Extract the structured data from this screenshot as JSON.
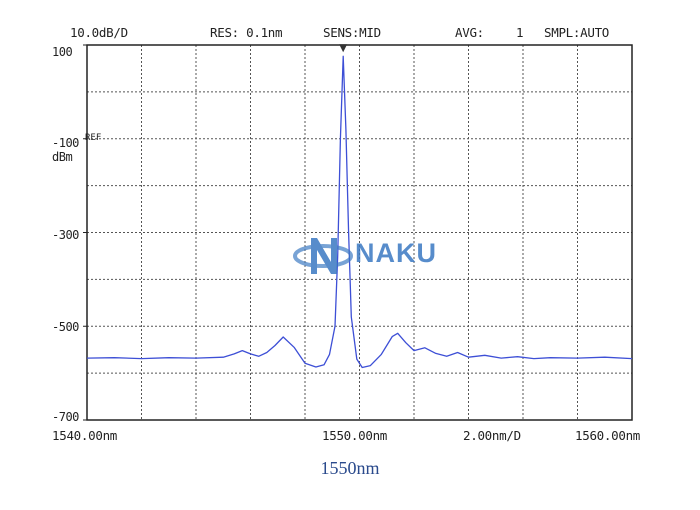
{
  "header": {
    "scale": "10.0dB/D",
    "resolution": "RES: 0.1nm",
    "sensitivity": "SENS:MID",
    "average_label": "AVG:",
    "average_value": "1",
    "sampling": "SMPL:AUTO"
  },
  "ref_marker": {
    "label": "REF",
    "unit": "dBm"
  },
  "watermark": {
    "text": "NAKU"
  },
  "caption": "1550nm",
  "colors": {
    "trace": "#3d4fd6",
    "grid": "#555555",
    "frame": "#222222",
    "watermark": "#3a78c2",
    "caption": "#2a4a8c"
  },
  "chart_data": {
    "type": "line",
    "x_axis": {
      "range": [
        1540,
        1560
      ],
      "unit": "nm",
      "divisions": 10,
      "tick_labels": [
        "1540.00nm",
        "1550.00nm",
        "2.00nm/D",
        "1560.00nm"
      ]
    },
    "y_axis": {
      "range": [
        -70,
        10
      ],
      "unit": "dBm",
      "divisions": 8,
      "tick_labels": [
        "100",
        "-100",
        "-300",
        "-500",
        "-700"
      ],
      "tick_values": [
        10,
        -10,
        -30,
        -50,
        -70
      ]
    },
    "grid": true,
    "peak_marker": {
      "x": 1549.4,
      "y": 7.6
    },
    "series": [
      {
        "x": [
          1540.0,
          1541.0,
          1542.0,
          1543.0,
          1544.0,
          1545.0,
          1545.4,
          1545.7,
          1546.0,
          1546.3,
          1546.6,
          1546.9,
          1547.2,
          1547.6,
          1548.0,
          1548.4,
          1548.7,
          1548.9,
          1549.1,
          1549.2,
          1549.3,
          1549.4,
          1549.5,
          1549.6,
          1549.7,
          1549.9,
          1550.1,
          1550.4,
          1550.8,
          1551.2,
          1551.4,
          1551.7,
          1552.0,
          1552.4,
          1552.8,
          1553.2,
          1553.6,
          1554.0,
          1554.6,
          1555.2,
          1555.8,
          1556.4,
          1557.0,
          1558.0,
          1559.0,
          1560.0
        ],
        "y": [
          -56.8,
          -56.7,
          -56.9,
          -56.7,
          -56.8,
          -56.6,
          -55.9,
          -55.2,
          -55.9,
          -56.4,
          -55.6,
          -54.1,
          -52.3,
          -54.5,
          -57.9,
          -58.7,
          -58.2,
          -56.0,
          -50.0,
          -35.0,
          -10.0,
          7.6,
          -8.0,
          -30.0,
          -48.0,
          -57.0,
          -58.8,
          -58.4,
          -56.0,
          -52.2,
          -51.5,
          -53.5,
          -55.2,
          -54.6,
          -55.8,
          -56.4,
          -55.6,
          -56.6,
          -56.2,
          -56.8,
          -56.5,
          -56.9,
          -56.7,
          -56.8,
          -56.6,
          -56.9
        ]
      }
    ]
  }
}
